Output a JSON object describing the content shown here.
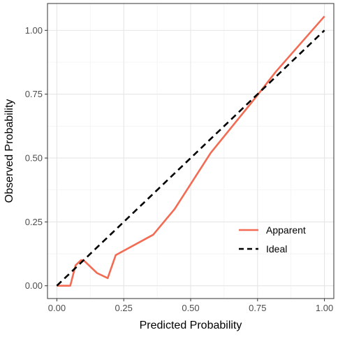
{
  "chart_data": {
    "type": "line",
    "title": "",
    "xlabel": "Predicted Probability",
    "ylabel": "Observed Probability",
    "xlim": [
      -0.035,
      1.035
    ],
    "ylim": [
      -0.05,
      1.105
    ],
    "x_ticks": [
      {
        "value": 0.0,
        "label": "0.00"
      },
      {
        "value": 0.25,
        "label": "0.25"
      },
      {
        "value": 0.5,
        "label": "0.50"
      },
      {
        "value": 0.75,
        "label": "0.75"
      },
      {
        "value": 1.0,
        "label": "1.00"
      }
    ],
    "y_ticks": [
      {
        "value": 0.0,
        "label": "0.00"
      },
      {
        "value": 0.25,
        "label": "0.25"
      },
      {
        "value": 0.5,
        "label": "0.50"
      },
      {
        "value": 0.75,
        "label": "0.75"
      },
      {
        "value": 1.0,
        "label": "1.00"
      }
    ],
    "grid": true,
    "legend_position": "bottom-right inside",
    "series": [
      {
        "name": "Apparent",
        "color": "#f26b52",
        "dash": "solid",
        "points": [
          [
            0.0,
            0.0
          ],
          [
            0.05,
            0.0
          ],
          [
            0.07,
            0.08
          ],
          [
            0.09,
            0.1
          ],
          [
            0.1,
            0.1
          ],
          [
            0.15,
            0.05
          ],
          [
            0.19,
            0.03
          ],
          [
            0.22,
            0.12
          ],
          [
            0.36,
            0.2
          ],
          [
            0.44,
            0.3
          ],
          [
            0.575,
            0.52
          ],
          [
            0.745,
            0.74
          ],
          [
            0.82,
            0.84
          ],
          [
            1.0,
            1.055
          ]
        ]
      },
      {
        "name": "Ideal",
        "color": "#000000",
        "dash": "dashed",
        "points": [
          [
            0.0,
            0.0
          ],
          [
            1.0,
            1.0
          ]
        ]
      }
    ]
  }
}
